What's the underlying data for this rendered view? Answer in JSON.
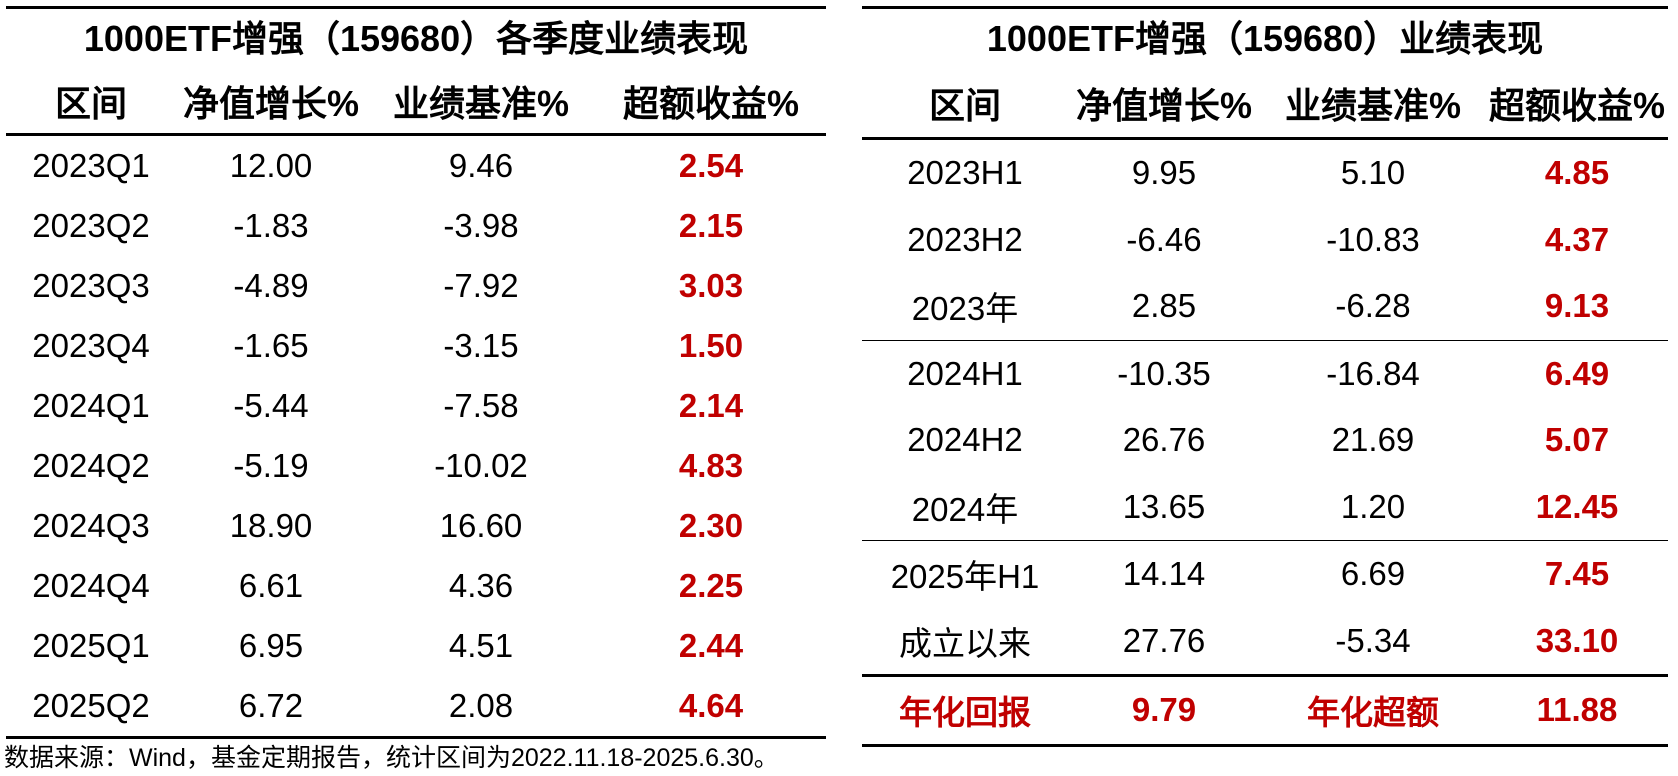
{
  "left_table": {
    "title": "1000ETF增强（159680）各季度业绩表现",
    "headers": [
      "区间",
      "净值增长%",
      "业绩基准%",
      "超额收益%"
    ],
    "rows": [
      [
        "2023Q1",
        "12.00",
        "9.46",
        "2.54"
      ],
      [
        "2023Q2",
        "-1.83",
        "-3.98",
        "2.15"
      ],
      [
        "2023Q3",
        "-4.89",
        "-7.92",
        "3.03"
      ],
      [
        "2023Q4",
        "-1.65",
        "-3.15",
        "1.50"
      ],
      [
        "2024Q1",
        "-5.44",
        "-7.58",
        "2.14"
      ],
      [
        "2024Q2",
        "-5.19",
        "-10.02",
        "4.83"
      ],
      [
        "2024Q3",
        "18.90",
        "16.60",
        "2.30"
      ],
      [
        "2024Q4",
        "6.61",
        "4.36",
        "2.25"
      ],
      [
        "2025Q1",
        "6.95",
        "4.51",
        "2.44"
      ],
      [
        "2025Q2",
        "6.72",
        "2.08",
        "4.64"
      ]
    ]
  },
  "right_table": {
    "title": "1000ETF增强（159680）业绩表现",
    "headers": [
      "区间",
      "净值增长%",
      "业绩基准%",
      "超额收益%"
    ],
    "groups": [
      [
        [
          "2023H1",
          "9.95",
          "5.10",
          "4.85"
        ],
        [
          "2023H2",
          "-6.46",
          "-10.83",
          "4.37"
        ],
        [
          "2023年",
          "2.85",
          "-6.28",
          "9.13"
        ]
      ],
      [
        [
          "2024H1",
          "-10.35",
          "-16.84",
          "6.49"
        ],
        [
          "2024H2",
          "26.76",
          "21.69",
          "5.07"
        ],
        [
          "2024年",
          "13.65",
          "1.20",
          "12.45"
        ]
      ],
      [
        [
          "2025年H1",
          "14.14",
          "6.69",
          "7.45"
        ],
        [
          "成立以来",
          "27.76",
          "-5.34",
          "33.10"
        ]
      ]
    ],
    "summary": [
      "年化回报",
      "9.79",
      "年化超额",
      "11.88"
    ]
  },
  "colors": {
    "highlight": "#c00000",
    "text": "#000000",
    "background": "#ffffff"
  },
  "source": "数据来源：Wind，基金定期报告，统计区间为2022.11.18-2025.6.30。"
}
